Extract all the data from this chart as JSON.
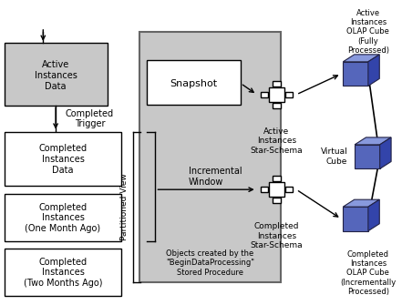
{
  "bg_color": "#ffffff",
  "partitioned_view_label": "Partitioned View",
  "completed_trigger_label": "Completed\nTrigger",
  "incremental_window_label": "Incremental\nWindow",
  "objects_created_label": "Objects created by the\n\"BeginDataProcessing\"\nStored Procedure",
  "active_instances_label": "Active\nInstances\nData",
  "completed_instances_data_label": "Completed\nInstances\nData",
  "completed_one_month_label": "Completed\nInstances\n(One Month Ago)",
  "completed_two_months_label": "Completed\nInstances\n(Two Months Ago)",
  "snapshot_label": "Snapshot",
  "active_star_schema_label": "Active\nInstances\nStar-Schema",
  "completed_star_schema_label": "Completed\nInstances\nStar-Schema",
  "active_olap_label": "Active\nInstances\nOLAP Cube\n(Fully\nProcessed)",
  "virtual_cube_label": "Virtual\nCube",
  "completed_olap_label": "Completed\nInstances\nOLAP Cube\n(Incrementally\nProcessed)",
  "gray_bg": "#c8c8c8",
  "white": "#ffffff",
  "box_edge": "#000000",
  "cube_front": "#5566bb",
  "cube_top": "#8899dd",
  "cube_right": "#3344aa"
}
